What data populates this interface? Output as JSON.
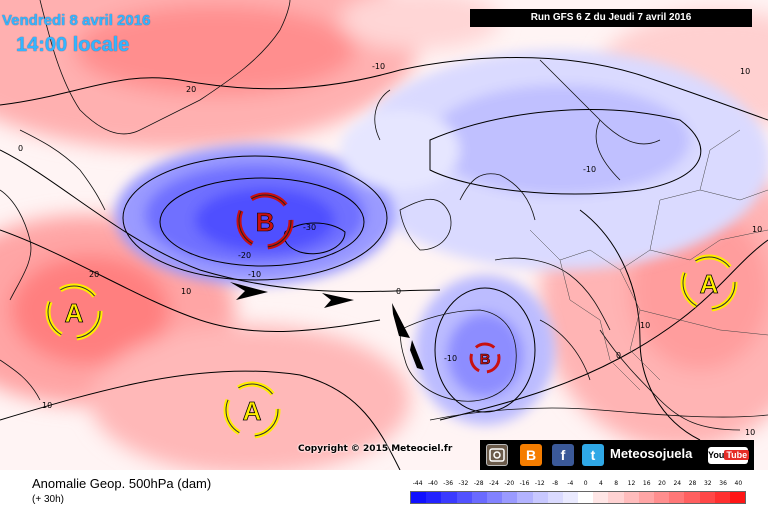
{
  "header": {
    "date": "Vendredi 8 avril 2016",
    "time": "14:00 locale",
    "run": "Run GFS 6 Z du Jeudi 7 avril 2016"
  },
  "footer": {
    "title": "Anomalie Geop. 500hPa (dam)",
    "step": "(+ 30h)",
    "copyright": "Copyright © 2015 Meteociel.fr"
  },
  "branding": {
    "name": "Meteosojuela",
    "icons": [
      "instagram-icon",
      "blogger-icon",
      "facebook-icon",
      "twitter-icon",
      "youtube-icon"
    ],
    "blogger_glyph": "B",
    "facebook_glyph": "f",
    "twitter_glyph": "t",
    "youtube_you": "You",
    "youtube_tube": "Tube"
  },
  "legend": {
    "values": [
      "-44",
      "-40",
      "-36",
      "-32",
      "-28",
      "-24",
      "-20",
      "-16",
      "-12",
      "-8",
      "-4",
      "0",
      "4",
      "8",
      "12",
      "16",
      "20",
      "24",
      "28",
      "32",
      "36",
      "40"
    ],
    "colors": [
      "#1010ff",
      "#2323ff",
      "#3a3aff",
      "#5252ff",
      "#6a6aff",
      "#8282ff",
      "#9a9aff",
      "#b3b3ff",
      "#c8c8ff",
      "#dadaff",
      "#eaeaff",
      "#ffffff",
      "#ffe6e6",
      "#ffd2d2",
      "#ffbcbc",
      "#ffa5a5",
      "#ff8e8e",
      "#ff7777",
      "#ff5f5f",
      "#ff4747",
      "#ff2f2f",
      "#ff1515"
    ]
  },
  "centers": [
    {
      "type": "low",
      "label": "B",
      "region": "South of Greenland / North Atlantic"
    },
    {
      "type": "low",
      "label": "B",
      "region": "Iberian Peninsula"
    },
    {
      "type": "high",
      "label": "A",
      "region": "Western Atlantic"
    },
    {
      "type": "high",
      "label": "A",
      "region": "Mid Atlantic"
    },
    {
      "type": "high",
      "label": "A",
      "region": "Eastern Europe"
    }
  ],
  "contour_labels": [
    "20",
    "-10",
    "0",
    "-10",
    "-20",
    "-30",
    "-10",
    "20",
    "10",
    "0",
    "10",
    "-10",
    "10",
    "10",
    "10",
    "0",
    "10"
  ],
  "arrows": [
    "jet-arrow-1",
    "jet-arrow-2",
    "jet-arrow-3",
    "jet-arrow-4"
  ],
  "colors": {
    "positive": "#ff8e8e",
    "negative": "#6a6aff",
    "low_symbol": "#cc1010",
    "high_symbol": "#ffee00"
  }
}
